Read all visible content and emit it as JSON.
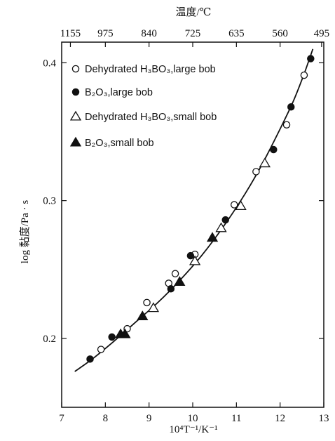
{
  "chart_data": {
    "type": "scatter",
    "xlabel": "10⁴T⁻¹/K⁻¹",
    "ylabel": "log 黏度/Pa · s",
    "top_axis_title": "温度/℃",
    "xlim": [
      7,
      13
    ],
    "ylim": [
      0.15,
      0.415
    ],
    "x_ticks": [
      7,
      8,
      9,
      10,
      11,
      12,
      13
    ],
    "y_ticks": [
      0.2,
      0.3,
      0.4
    ],
    "y_tick_labels": [
      "0.2",
      "0.3",
      "0.4"
    ],
    "top_ticks": [
      {
        "x": 7.2,
        "label": "1155"
      },
      {
        "x": 8.0,
        "label": "975"
      },
      {
        "x": 9.0,
        "label": "840"
      },
      {
        "x": 10.0,
        "label": "725"
      },
      {
        "x": 11.0,
        "label": "635"
      },
      {
        "x": 12.0,
        "label": "560"
      },
      {
        "x": 12.95,
        "label": "495"
      }
    ],
    "grid": false,
    "legend_position": "top-left",
    "series": [
      {
        "name": "Dehydrated H₃BO₃,large bob",
        "marker": "open-circle",
        "points": [
          [
            7.9,
            0.192
          ],
          [
            8.5,
            0.207
          ],
          [
            8.95,
            0.226
          ],
          [
            9.45,
            0.24
          ],
          [
            9.6,
            0.247
          ],
          [
            10.05,
            0.261
          ],
          [
            10.95,
            0.297
          ],
          [
            11.45,
            0.321
          ],
          [
            12.15,
            0.355
          ],
          [
            12.55,
            0.391
          ]
        ]
      },
      {
        "name": "B₂O₃,large bob",
        "marker": "filled-circle",
        "points": [
          [
            7.65,
            0.185
          ],
          [
            8.15,
            0.201
          ],
          [
            9.5,
            0.236
          ],
          [
            9.95,
            0.26
          ],
          [
            10.75,
            0.286
          ],
          [
            11.85,
            0.337
          ],
          [
            12.25,
            0.368
          ],
          [
            12.7,
            0.403
          ]
        ]
      },
      {
        "name": "Dehydrated H₃BO₃,small bob",
        "marker": "open-triangle",
        "points": [
          [
            9.1,
            0.222
          ],
          [
            10.05,
            0.256
          ],
          [
            10.65,
            0.28
          ],
          [
            11.1,
            0.296
          ],
          [
            11.65,
            0.327
          ]
        ]
      },
      {
        "name": "B₂O₃,small bob",
        "marker": "filled-triangle",
        "points": [
          [
            8.35,
            0.203
          ],
          [
            8.45,
            0.203
          ],
          [
            8.85,
            0.216
          ],
          [
            9.7,
            0.241
          ],
          [
            10.45,
            0.273
          ]
        ]
      }
    ],
    "fit_curve": [
      [
        7.3,
        0.176
      ],
      [
        7.7,
        0.185
      ],
      [
        8.2,
        0.198
      ],
      [
        8.7,
        0.212
      ],
      [
        9.2,
        0.226
      ],
      [
        9.7,
        0.242
      ],
      [
        10.2,
        0.26
      ],
      [
        10.7,
        0.281
      ],
      [
        11.2,
        0.305
      ],
      [
        11.6,
        0.327
      ],
      [
        12.0,
        0.352
      ],
      [
        12.3,
        0.372
      ],
      [
        12.55,
        0.392
      ],
      [
        12.75,
        0.41
      ]
    ]
  }
}
